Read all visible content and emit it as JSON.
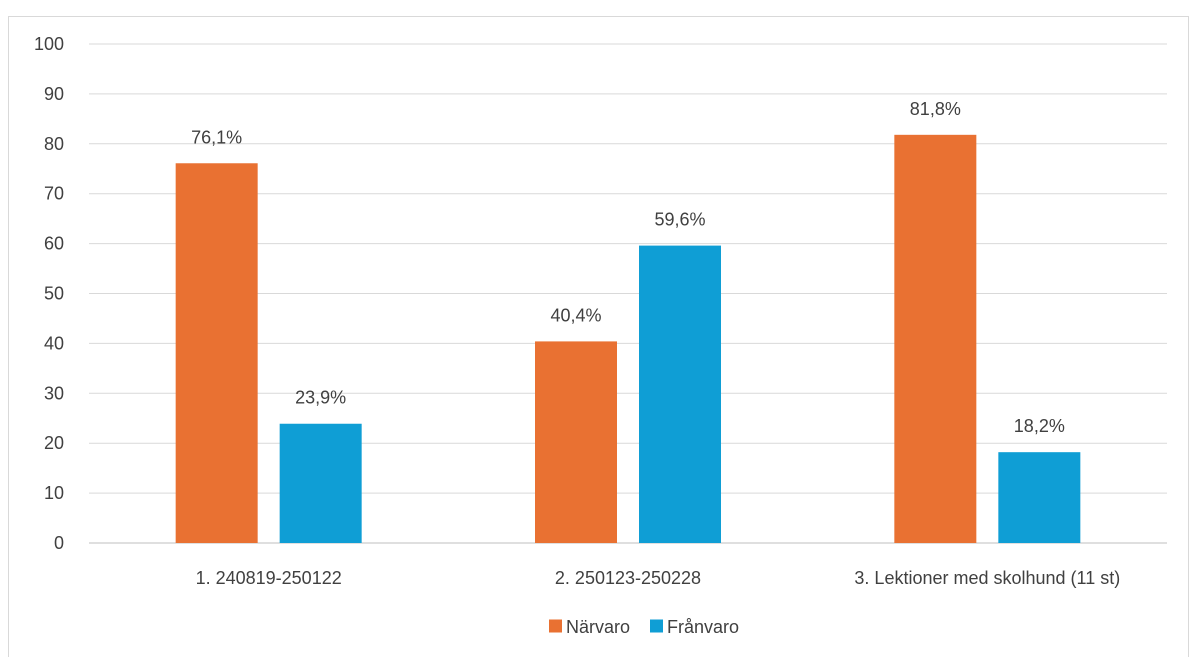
{
  "chart_data": {
    "type": "bar",
    "title": "",
    "xlabel": "",
    "ylabel": "",
    "ylim": [
      0,
      100
    ],
    "yticks": [
      0,
      10,
      20,
      30,
      40,
      50,
      60,
      70,
      80,
      90,
      100
    ],
    "grid": true,
    "legend_position": "bottom",
    "categories": [
      "1. 240819-250122",
      "2. 250123-250228",
      "3. Lektioner med skolhund (11 st)"
    ],
    "series": [
      {
        "name": "Närvaro",
        "color": "#E97132",
        "values": [
          76.1,
          40.4,
          81.8
        ],
        "labels": [
          "76,1%",
          "40,4%",
          "81,8%"
        ]
      },
      {
        "name": "Frånvaro",
        "color": "#0F9ED5",
        "values": [
          23.9,
          59.6,
          18.2
        ],
        "labels": [
          "23,9%",
          "59,6%",
          "18,2%"
        ]
      }
    ]
  }
}
